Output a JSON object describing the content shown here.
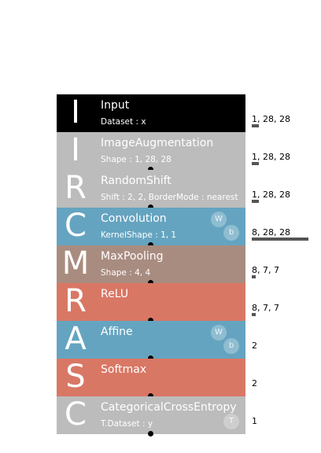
{
  "layers": [
    {
      "letter": "I",
      "name": "Input",
      "param": "Dataset : x",
      "color": "#000000",
      "badges": [],
      "shape": "1, 28, 28",
      "size": 784
    },
    {
      "letter": "I",
      "name": "ImageAugmentation",
      "param": "Shape : 1, 28, 28",
      "color": "#bcbcbc",
      "badges": [],
      "shape": "1, 28, 28",
      "size": 784
    },
    {
      "letter": "R",
      "name": "RandomShift",
      "param": "Shift : 2, 2, BorderMode : nearest",
      "color": "#bcbcbc",
      "badges": [],
      "shape": "1, 28, 28",
      "size": 784
    },
    {
      "letter": "C",
      "name": "Convolution",
      "param": "KernelShape : 1, 1",
      "color": "#65a4c0",
      "badges": [
        "W",
        "b"
      ],
      "shape": "8, 28, 28",
      "size": 6272
    },
    {
      "letter": "M",
      "name": "MaxPooling",
      "param": "Shape : 4, 4",
      "color": "#a98c80",
      "badges": [],
      "shape": "8, 7, 7",
      "size": 392
    },
    {
      "letter": "R",
      "name": "ReLU",
      "param": "",
      "color": "#d97765",
      "badges": [],
      "shape": "8, 7, 7",
      "size": 392
    },
    {
      "letter": "A",
      "name": "Affine",
      "param": "",
      "color": "#65a4c0",
      "badges": [
        "W",
        "b"
      ],
      "shape": "2",
      "size": 2
    },
    {
      "letter": "S",
      "name": "Softmax",
      "param": "",
      "color": "#d97765",
      "badges": [],
      "shape": "2",
      "size": 2
    },
    {
      "letter": "C",
      "name": "CategoricalCrossEntropy",
      "param": "T.Dataset : y",
      "color": "#bcbcbc",
      "badges": [
        "T"
      ],
      "shape": "1",
      "size": 1
    }
  ]
}
